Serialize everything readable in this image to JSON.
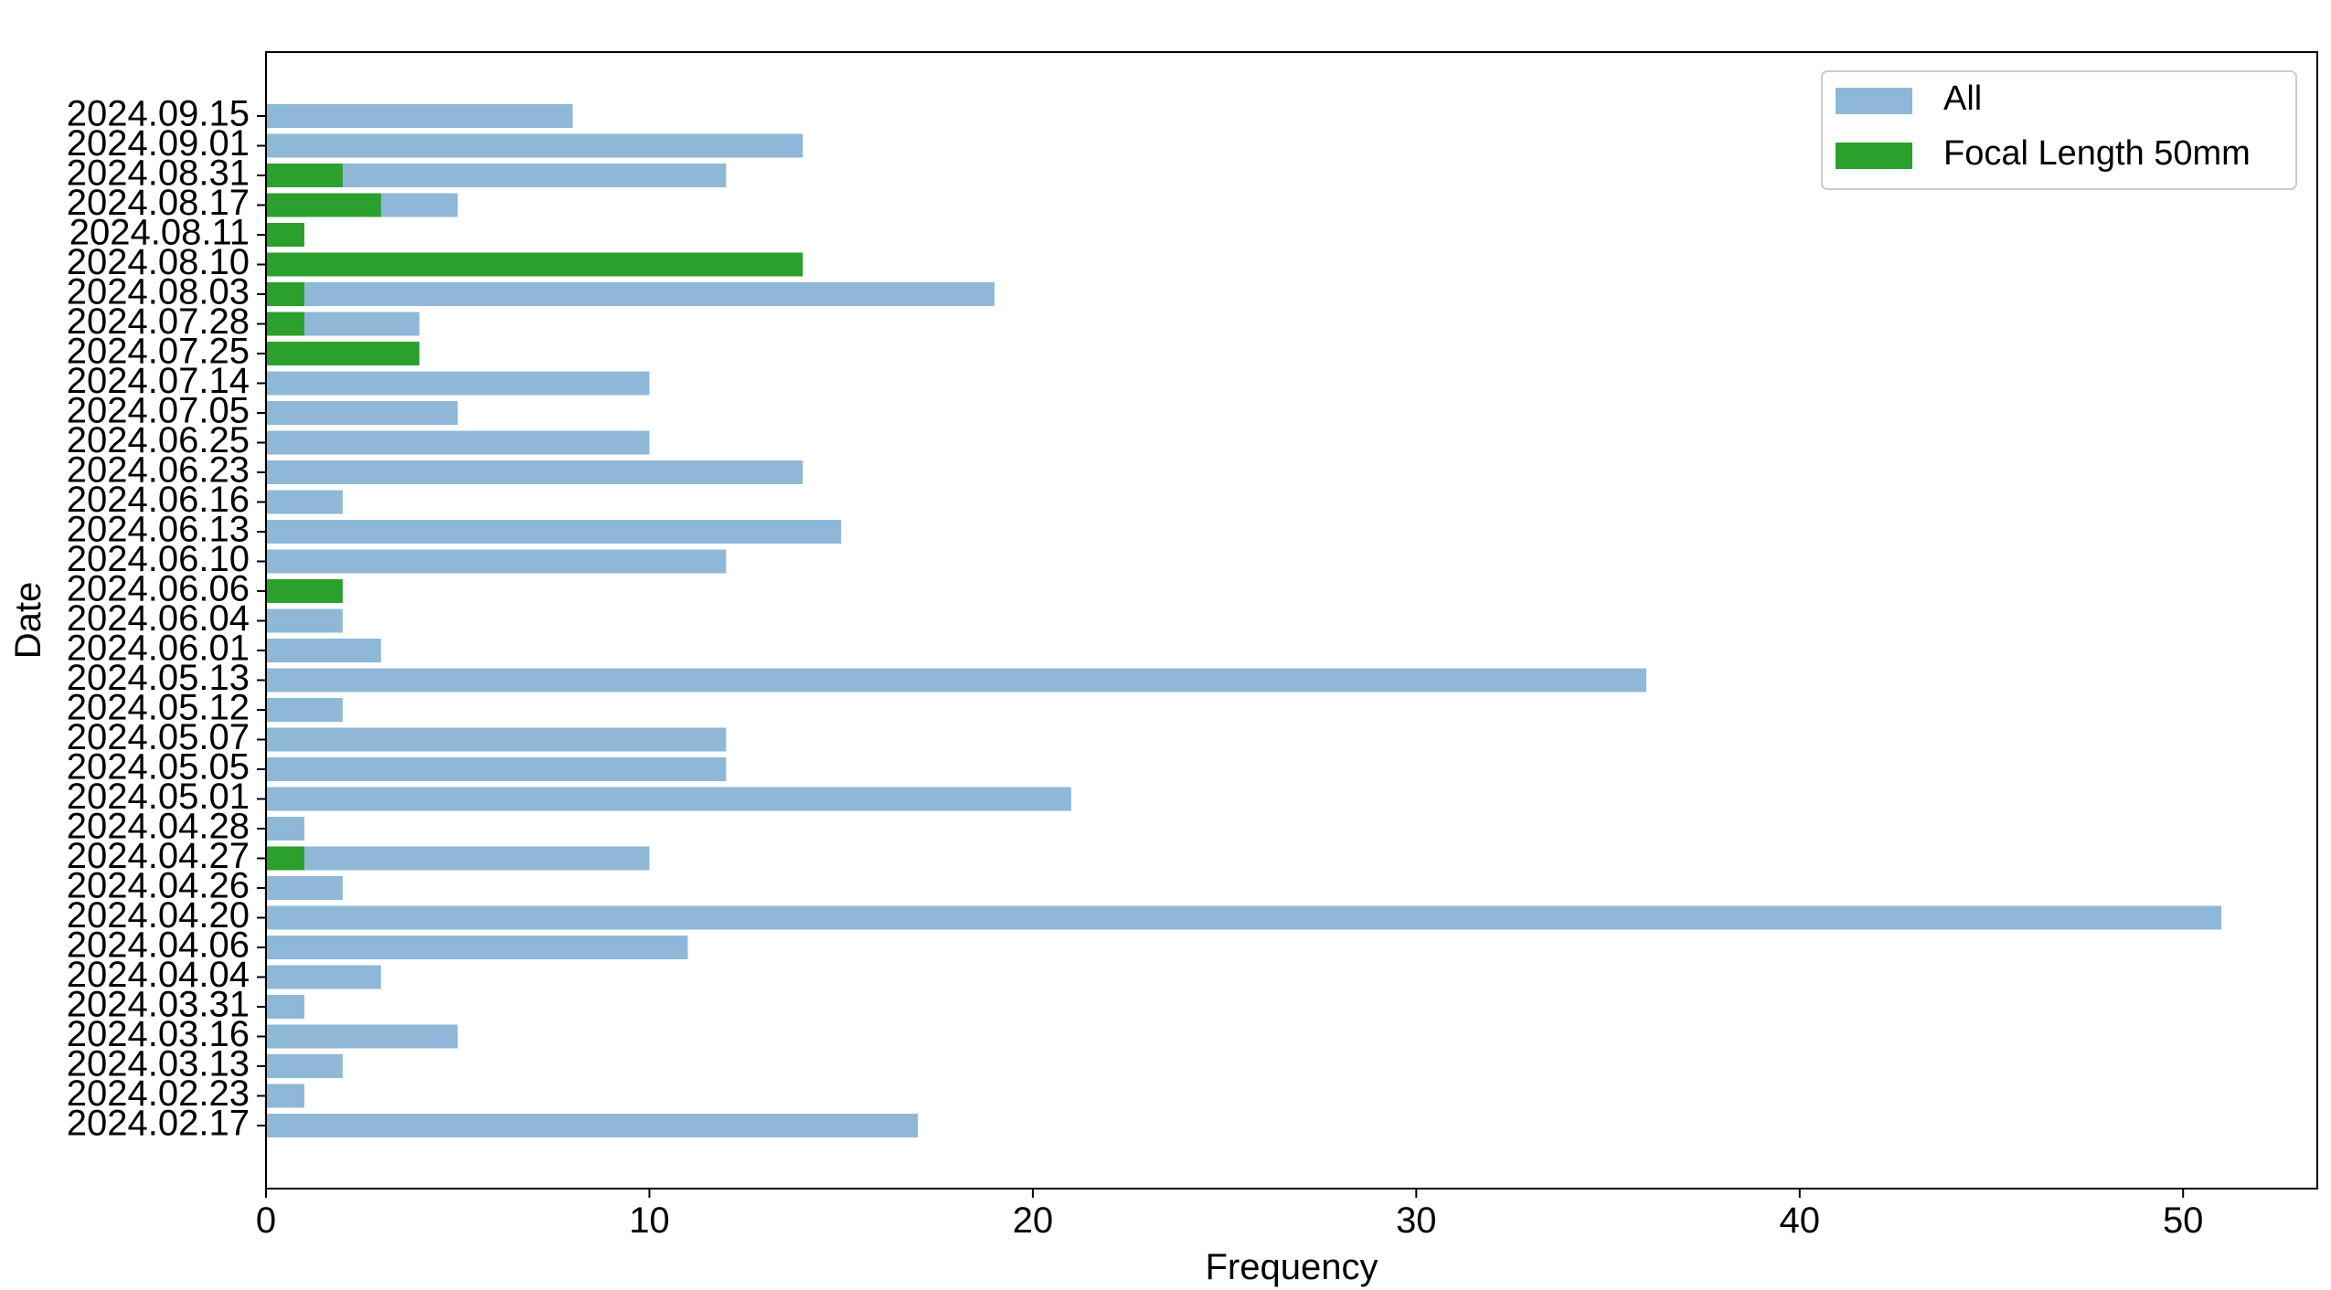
{
  "chart_data": {
    "type": "bar",
    "orientation": "horizontal",
    "title": "",
    "xlabel": "Frequency",
    "ylabel": "Date",
    "xlim": [
      0,
      53.5
    ],
    "xticks": [
      0,
      10,
      20,
      30,
      40,
      50
    ],
    "grid": false,
    "legend_position": "top-right",
    "categories": [
      "2024.02.17",
      "2024.02.23",
      "2024.03.13",
      "2024.03.16",
      "2024.03.31",
      "2024.04.04",
      "2024.04.06",
      "2024.04.20",
      "2024.04.26",
      "2024.04.27",
      "2024.04.28",
      "2024.05.01",
      "2024.05.05",
      "2024.05.07",
      "2024.05.12",
      "2024.05.13",
      "2024.06.01",
      "2024.06.04",
      "2024.06.06",
      "2024.06.10",
      "2024.06.13",
      "2024.06.16",
      "2024.06.23",
      "2024.06.25",
      "2024.07.05",
      "2024.07.14",
      "2024.07.25",
      "2024.07.28",
      "2024.08.03",
      "2024.08.10",
      "2024.08.11",
      "2024.08.17",
      "2024.08.31",
      "2024.09.01",
      "2024.09.15"
    ],
    "series": [
      {
        "name": "All",
        "color": "#8fb8d8",
        "values": [
          17,
          1,
          2,
          5,
          1,
          3,
          11,
          51,
          2,
          10,
          1,
          21,
          12,
          12,
          2,
          36,
          3,
          2,
          null,
          12,
          15,
          2,
          14,
          10,
          5,
          10,
          null,
          4,
          19,
          null,
          null,
          5,
          12,
          14,
          8
        ]
      },
      {
        "name": "Focal Length 50mm",
        "color": "#2ca02c",
        "values": [
          null,
          null,
          null,
          null,
          null,
          null,
          null,
          null,
          null,
          1,
          null,
          null,
          null,
          null,
          null,
          null,
          null,
          null,
          2,
          null,
          null,
          null,
          null,
          null,
          null,
          null,
          4,
          1,
          1,
          14,
          1,
          3,
          2,
          null,
          null
        ]
      }
    ]
  }
}
